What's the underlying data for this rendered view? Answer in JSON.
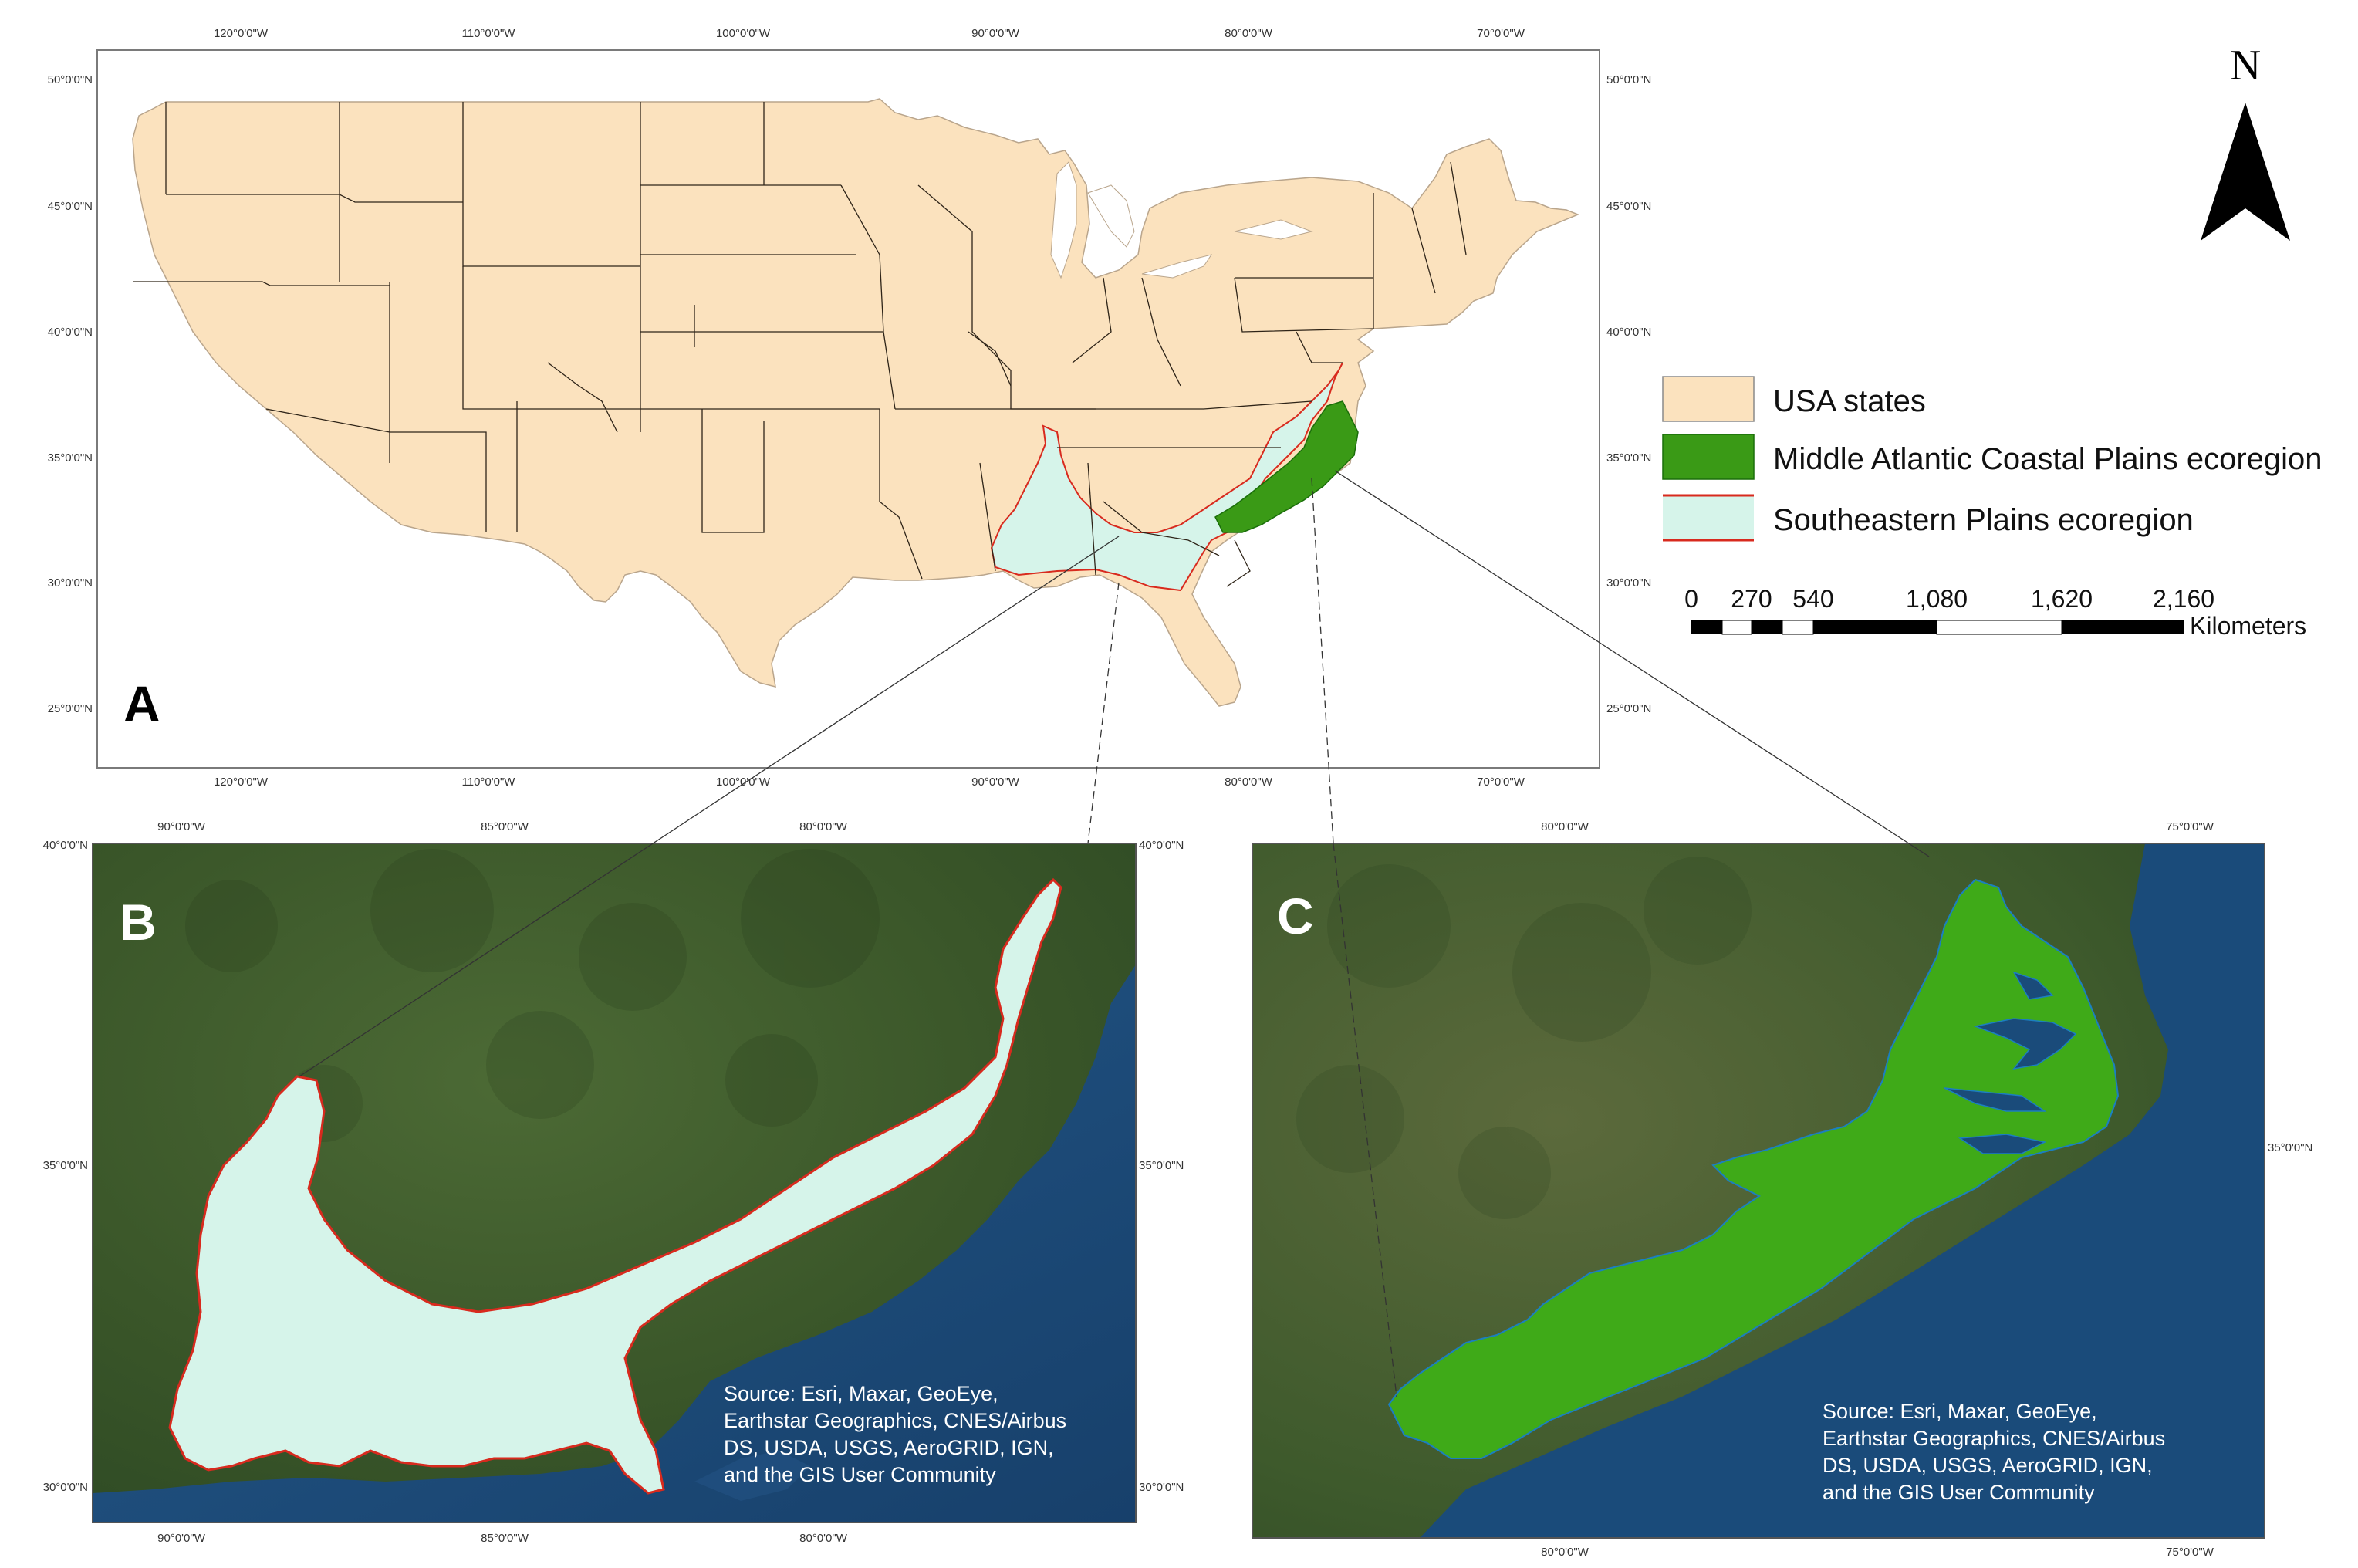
{
  "panels": {
    "A": {
      "letter": "A",
      "top_ticks": [
        "120°0'0\"W",
        "110°0'0\"W",
        "100°0'0\"W",
        "90°0'0\"W",
        "80°0'0\"W",
        "70°0'0\"W"
      ],
      "bottom_ticks": [
        "120°0'0\"W",
        "110°0'0\"W",
        "100°0'0\"W",
        "90°0'0\"W",
        "80°0'0\"W",
        "70°0'0\"W"
      ],
      "left_ticks": [
        "50°0'0\"N",
        "45°0'0\"N",
        "40°0'0\"N",
        "35°0'0\"N",
        "30°0'0\"N",
        "25°0'0\"N"
      ],
      "right_ticks": [
        "50°0'0\"N",
        "45°0'0\"N",
        "40°0'0\"N",
        "35°0'0\"N",
        "30°0'0\"N",
        "25°0'0\"N"
      ]
    },
    "B": {
      "letter": "B",
      "top_ticks": [
        "90°0'0\"W",
        "85°0'0\"W",
        "80°0'0\"W"
      ],
      "bottom_ticks": [
        "90°0'0\"W",
        "85°0'0\"W",
        "80°0'0\"W"
      ],
      "left_ticks": [
        "40°0'0\"N",
        "35°0'0\"N",
        "30°0'0\"N"
      ],
      "right_ticks": [
        "40°0'0\"N",
        "35°0'0\"N",
        "30°0'0\"N"
      ],
      "source_lines": [
        "Source: Esri, Maxar, GeoEye,",
        "Earthstar Geographics, CNES/Airbus",
        "DS, USDA, USGS, AeroGRID, IGN,",
        "and the GIS User Community"
      ]
    },
    "C": {
      "letter": "C",
      "top_ticks": [
        "80°0'0\"W",
        "75°0'0\"W"
      ],
      "bottom_ticks": [
        "80°0'0\"W",
        "75°0'0\"W"
      ],
      "right_ticks": [
        "35°0'0\"N"
      ],
      "source_lines": [
        "Source: Esri, Maxar, GeoEye,",
        "Earthstar Geographics, CNES/Airbus",
        "DS, USDA, USGS, AeroGRID, IGN,",
        "and the GIS User Community"
      ]
    }
  },
  "legend": {
    "items": [
      {
        "label": "USA states",
        "fill": "#fbe2be",
        "border": "#8a8a8a"
      },
      {
        "label": "Middle Atlantic Coastal Plains ecoregion",
        "fill": "#3a9a16",
        "border": "#1a6e0a"
      },
      {
        "label": "Southeastern Plains ecoregion",
        "fill": "#d6f4ea",
        "border": "#d82a1e"
      }
    ]
  },
  "north_arrow": {
    "label": "N"
  },
  "scale_bar": {
    "numbers": [
      "0",
      "270",
      "540",
      "1,080",
      "1,620",
      "2,160"
    ],
    "unit": "Kilometers"
  },
  "colors": {
    "states": "#fbe2be",
    "state_lines": "#3a2a1a",
    "mid_atlantic": "#3a9a16",
    "southeastern": "#d6f4ea",
    "southeastern_outline": "#d82a1e",
    "imagery_land": "#3b5a2c",
    "imagery_ocean": "#1f4a78"
  }
}
